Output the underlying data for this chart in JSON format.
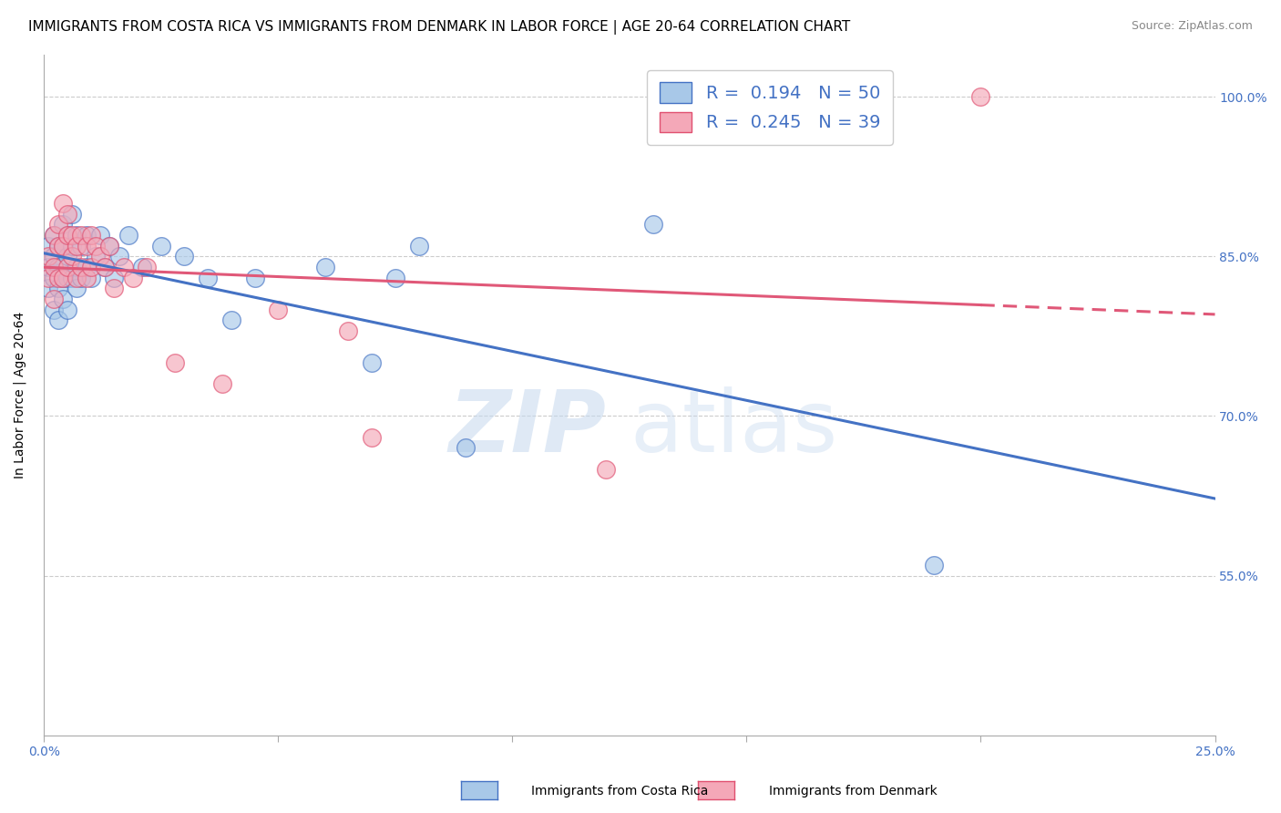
{
  "title": "IMMIGRANTS FROM COSTA RICA VS IMMIGRANTS FROM DENMARK IN LABOR FORCE | AGE 20-64 CORRELATION CHART",
  "source": "Source: ZipAtlas.com",
  "ylabel": "In Labor Force | Age 20-64",
  "watermark": "ZIPatlas",
  "legend_cr_r": "0.194",
  "legend_cr_n": "50",
  "legend_dk_r": "0.245",
  "legend_dk_n": "39",
  "legend_label_cr": "Immigrants from Costa Rica",
  "legend_label_dk": "Immigrants from Denmark",
  "xlim": [
    0.0,
    0.25
  ],
  "ylim": [
    0.4,
    1.04
  ],
  "cr_color": "#a8c8e8",
  "dk_color": "#f4a8b8",
  "cr_edge_color": "#4472c4",
  "dk_edge_color": "#e05070",
  "cr_line_color": "#4472c4",
  "dk_line_color": "#e05878",
  "background_color": "#ffffff",
  "costa_rica_x": [
    0.001,
    0.001,
    0.001,
    0.002,
    0.002,
    0.002,
    0.002,
    0.003,
    0.003,
    0.003,
    0.003,
    0.004,
    0.004,
    0.004,
    0.004,
    0.005,
    0.005,
    0.005,
    0.005,
    0.006,
    0.006,
    0.006,
    0.007,
    0.007,
    0.007,
    0.008,
    0.008,
    0.009,
    0.009,
    0.01,
    0.011,
    0.012,
    0.013,
    0.014,
    0.015,
    0.016,
    0.018,
    0.021,
    0.025,
    0.03,
    0.035,
    0.04,
    0.045,
    0.06,
    0.07,
    0.075,
    0.08,
    0.09,
    0.13,
    0.19
  ],
  "costa_rica_y": [
    0.82,
    0.84,
    0.86,
    0.8,
    0.83,
    0.85,
    0.87,
    0.79,
    0.82,
    0.84,
    0.86,
    0.81,
    0.83,
    0.86,
    0.88,
    0.8,
    0.83,
    0.85,
    0.87,
    0.83,
    0.86,
    0.89,
    0.82,
    0.84,
    0.87,
    0.83,
    0.86,
    0.84,
    0.87,
    0.83,
    0.85,
    0.87,
    0.84,
    0.86,
    0.83,
    0.85,
    0.87,
    0.84,
    0.86,
    0.85,
    0.83,
    0.79,
    0.83,
    0.84,
    0.75,
    0.83,
    0.86,
    0.67,
    0.88,
    0.56
  ],
  "denmark_x": [
    0.001,
    0.001,
    0.002,
    0.002,
    0.002,
    0.003,
    0.003,
    0.003,
    0.004,
    0.004,
    0.004,
    0.005,
    0.005,
    0.005,
    0.006,
    0.006,
    0.007,
    0.007,
    0.008,
    0.008,
    0.009,
    0.009,
    0.01,
    0.01,
    0.011,
    0.012,
    0.013,
    0.014,
    0.015,
    0.017,
    0.019,
    0.022,
    0.028,
    0.038,
    0.05,
    0.065,
    0.07,
    0.12,
    0.2
  ],
  "denmark_y": [
    0.83,
    0.85,
    0.81,
    0.84,
    0.87,
    0.83,
    0.86,
    0.88,
    0.83,
    0.86,
    0.9,
    0.84,
    0.87,
    0.89,
    0.85,
    0.87,
    0.83,
    0.86,
    0.84,
    0.87,
    0.83,
    0.86,
    0.84,
    0.87,
    0.86,
    0.85,
    0.84,
    0.86,
    0.82,
    0.84,
    0.83,
    0.84,
    0.75,
    0.73,
    0.8,
    0.78,
    0.68,
    0.65,
    1.0
  ],
  "ytick_vals": [
    0.55,
    0.7,
    0.85,
    1.0
  ],
  "ytick_labels": [
    "55.0%",
    "70.0%",
    "85.0%",
    "100.0%"
  ],
  "title_fontsize": 11,
  "source_fontsize": 9,
  "axis_label_fontsize": 10,
  "tick_fontsize": 10
}
